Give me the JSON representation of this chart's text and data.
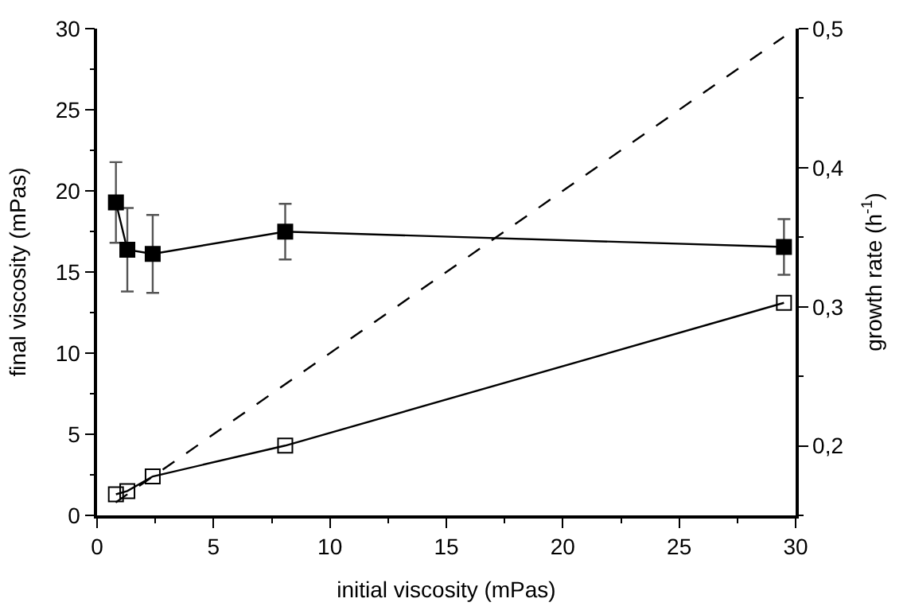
{
  "chart_data": {
    "type": "line",
    "xlabel": "initial viscosity (mPas)",
    "ylabel": "final viscosity (mPas)",
    "y2label": "growth rate (h$^{-1}$)",
    "xlim": [
      0,
      30
    ],
    "xticks": [
      0,
      5,
      10,
      15,
      20,
      25,
      30
    ],
    "ylim": [
      0,
      30
    ],
    "yticks": [
      0,
      5,
      10,
      15,
      20,
      25,
      30
    ],
    "y2lim": [
      0.15,
      0.5
    ],
    "y2ticks": [
      {
        "value": 0.2,
        "label": "0,2"
      },
      {
        "value": 0.3,
        "label": "0,3"
      },
      {
        "value": 0.4,
        "label": "0,4"
      },
      {
        "value": 0.5,
        "label": "0,5"
      }
    ],
    "series": [
      {
        "axis": "y2",
        "color": "#000000",
        "x": [
          0.81,
          1.3,
          2.39,
          8.08,
          29.5
        ],
        "values": [
          0.375,
          0.341,
          0.338,
          0.354,
          0.343
        ],
        "errors": [
          0.029,
          0.03,
          0.028,
          0.02,
          0.02
        ],
        "marker": "square"
      },
      {
        "color": "#000000",
        "x": [
          0.81,
          1.3,
          2.39,
          8.08,
          29.5
        ],
        "values": [
          1.3,
          1.5,
          2.4,
          4.3,
          13.1
        ],
        "marker": "square"
      },
      {
        "color": "#000000",
        "x": [
          0.8,
          29.5
        ],
        "values": [
          0.8,
          29.5
        ],
        "marker": "none",
        "line_style": "dashed"
      }
    ]
  }
}
